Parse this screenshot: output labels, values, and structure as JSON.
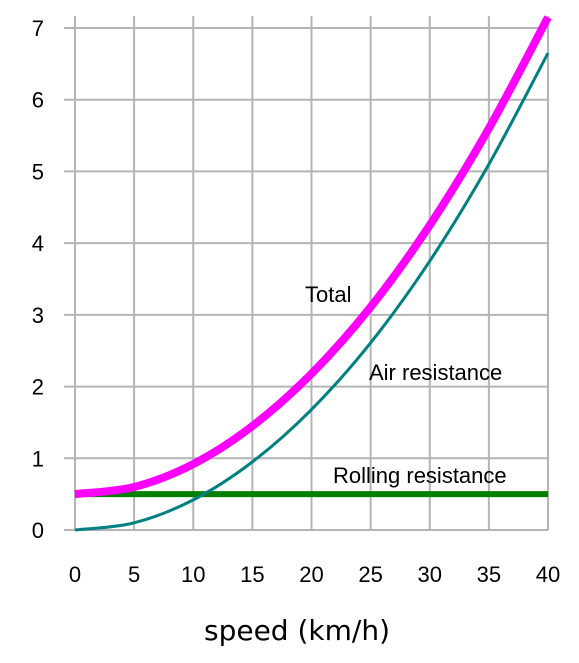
{
  "chart_data": {
    "type": "line",
    "title": "",
    "xlabel": "speed (km/h)",
    "ylabel": "",
    "xlim": [
      0,
      40
    ],
    "ylim": [
      0,
      7
    ],
    "x_ticks": [
      "0",
      "5",
      "10",
      "15",
      "20",
      "25",
      "30",
      "35",
      "40"
    ],
    "y_ticks": [
      "0",
      "1",
      "2",
      "3",
      "4",
      "5",
      "6",
      "7"
    ],
    "grid": true,
    "x": [
      0,
      5,
      10,
      15,
      20,
      25,
      30,
      35,
      40
    ],
    "series": [
      {
        "name": "Total",
        "color": "#ff00ff",
        "values": [
          0.5,
          0.6,
          0.92,
          1.45,
          2.18,
          3.11,
          4.25,
          5.6,
          7.15
        ]
      },
      {
        "name": "Air resistance",
        "color": "#008080",
        "values": [
          0.0,
          0.1,
          0.42,
          0.95,
          1.68,
          2.61,
          3.75,
          5.1,
          6.65
        ]
      },
      {
        "name": "Rolling resistance",
        "color": "#008000",
        "values": [
          0.5,
          0.5,
          0.5,
          0.5,
          0.5,
          0.5,
          0.5,
          0.5,
          0.5
        ]
      }
    ]
  }
}
